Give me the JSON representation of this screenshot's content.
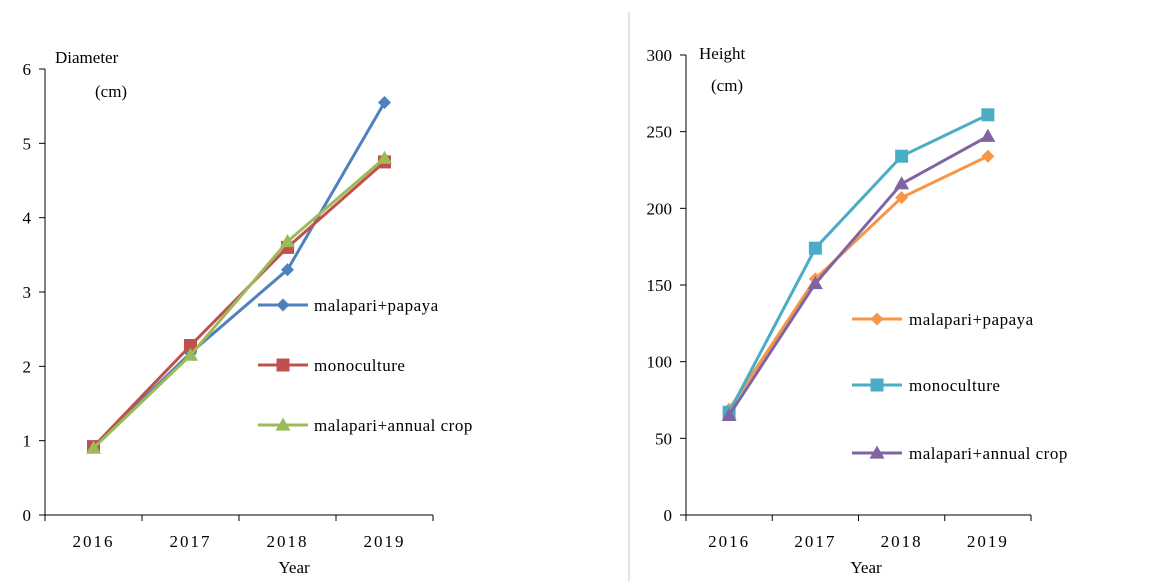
{
  "chart_data": [
    {
      "type": "line",
      "ylabel_line1": "Diameter",
      "ylabel_line2": "(cm)",
      "xlabel": "Year",
      "categories": [
        "2016",
        "2017",
        "2018",
        "2019"
      ],
      "ylim": [
        0,
        6
      ],
      "yticks": [
        0,
        1,
        2,
        3,
        4,
        5,
        6
      ],
      "legend_position": "right",
      "series": [
        {
          "name": "malapari+papaya",
          "marker": "diamond",
          "color": "#4f81bd",
          "values": [
            0.92,
            2.18,
            3.3,
            5.55
          ]
        },
        {
          "name": "monoculture",
          "marker": "square",
          "color": "#c0504d",
          "values": [
            0.92,
            2.28,
            3.6,
            4.75
          ]
        },
        {
          "name": "malapari+annual crop",
          "marker": "triangle",
          "color": "#9bbb59",
          "values": [
            0.9,
            2.15,
            3.68,
            4.8
          ]
        }
      ]
    },
    {
      "type": "line",
      "ylabel_line1": "Height",
      "ylabel_line2": "(cm)",
      "xlabel": "Year",
      "categories": [
        "2016",
        "2017",
        "2018",
        "2019"
      ],
      "ylim": [
        0,
        300
      ],
      "yticks": [
        0,
        50,
        100,
        150,
        200,
        250,
        300
      ],
      "legend_position": "right",
      "series": [
        {
          "name": "malapari+papaya",
          "marker": "diamond",
          "color": "#f79646",
          "values": [
            69,
            154,
            207,
            234
          ]
        },
        {
          "name": "monoculture",
          "marker": "square",
          "color": "#4bacc6",
          "values": [
            67,
            174,
            234,
            261
          ]
        },
        {
          "name": "malapari+annual crop",
          "marker": "triangle",
          "color": "#8064a2",
          "values": [
            65,
            151,
            216,
            247
          ]
        }
      ]
    }
  ]
}
